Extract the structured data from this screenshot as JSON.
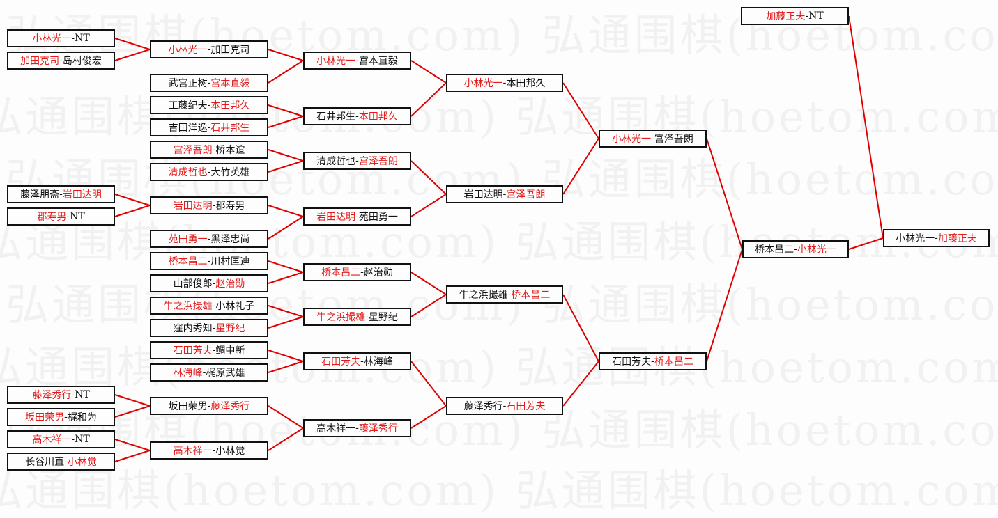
{
  "watermark": "弘通围棋(hoetom.com) 弘通围棋(hoetom.com) 弘通围棋(hoetom.com)",
  "colors": {
    "winner": "#e31b1b",
    "line": "#e00000",
    "text": "#111111"
  },
  "separator": "-",
  "rounds": {
    "round1": [
      {
        "left": "小林光一",
        "right": "NT",
        "winner": "left"
      },
      {
        "left": "加田克司",
        "right": "岛村俊宏",
        "winner": "left"
      },
      {
        "left": "藤泽朋斋",
        "right": "岩田达明",
        "winner": "right"
      },
      {
        "left": "郡寿男",
        "right": "NT",
        "winner": "left"
      },
      {
        "left": "藤泽秀行",
        "right": "NT",
        "winner": "left"
      },
      {
        "left": "坂田荣男",
        "right": "梶和为",
        "winner": "left"
      },
      {
        "left": "高木祥一",
        "right": "NT",
        "winner": "left"
      },
      {
        "left": "长谷川直",
        "right": "小林觉",
        "winner": "right"
      }
    ],
    "round2": [
      {
        "left": "小林光一",
        "right": "加田克司",
        "winner": "left"
      },
      {
        "left": "武宫正树",
        "right": "宫本直毅",
        "winner": "right"
      },
      {
        "left": "工藤纪夫",
        "right": "本田邦久",
        "winner": "right"
      },
      {
        "left": "吉田洋逸",
        "right": "石井邦生",
        "winner": "right"
      },
      {
        "left": "宫泽吾朗",
        "right": "桥本谊",
        "winner": "left"
      },
      {
        "left": "清成哲也",
        "right": "大竹英雄",
        "winner": "left"
      },
      {
        "left": "岩田达明",
        "right": "郡寿男",
        "winner": "left"
      },
      {
        "left": "苑田勇一",
        "right": "黑泽忠尚",
        "winner": "left"
      },
      {
        "left": "桥本昌二",
        "right": "川村匡迪",
        "winner": "left"
      },
      {
        "left": "山部俊郎",
        "right": "赵治勋",
        "winner": "right"
      },
      {
        "left": "牛之浜撮雄",
        "right": "小林礼子",
        "winner": "left"
      },
      {
        "left": "窪内秀知",
        "right": "星野纪",
        "winner": "right"
      },
      {
        "left": "石田芳夫",
        "right": "鲷中新",
        "winner": "left"
      },
      {
        "left": "林海峰",
        "right": "梶原武雄",
        "winner": "left"
      },
      {
        "left": "坂田荣男",
        "right": "藤泽秀行",
        "winner": "right"
      },
      {
        "left": "高木祥一",
        "right": "小林觉",
        "winner": "left"
      }
    ],
    "round3": [
      {
        "left": "小林光一",
        "right": "宫本直毅",
        "winner": "left"
      },
      {
        "left": "石井邦生",
        "right": "本田邦久",
        "winner": "right"
      },
      {
        "left": "清成哲也",
        "right": "宫泽吾朗",
        "winner": "right"
      },
      {
        "left": "岩田达明",
        "right": "苑田勇一",
        "winner": "left"
      },
      {
        "left": "桥本昌二",
        "right": "赵治勋",
        "winner": "left"
      },
      {
        "left": "牛之浜撮雄",
        "right": "星野纪",
        "winner": "left"
      },
      {
        "left": "石田芳夫",
        "right": "林海峰",
        "winner": "left"
      },
      {
        "left": "高木祥一",
        "right": "藤泽秀行",
        "winner": "right"
      }
    ],
    "round4": [
      {
        "left": "小林光一",
        "right": "本田邦久",
        "winner": "left"
      },
      {
        "left": "岩田达明",
        "right": "宫泽吾朗",
        "winner": "right"
      },
      {
        "left": "牛之浜撮雄",
        "right": "桥本昌二",
        "winner": "right"
      },
      {
        "left": "藤泽秀行",
        "right": "石田芳夫",
        "winner": "right"
      }
    ],
    "round5": [
      {
        "left": "小林光一",
        "right": "宫泽吾朗",
        "winner": "left"
      },
      {
        "left": "石田芳夫",
        "right": "桥本昌二",
        "winner": "right"
      }
    ],
    "round6": [
      {
        "left": "桥本昌二",
        "right": "小林光一",
        "winner": "right"
      }
    ],
    "seed": [
      {
        "left": "加藤正夫",
        "right": "NT",
        "winner": "left"
      }
    ],
    "final": [
      {
        "left": "小林光一",
        "right": "加藤正夫",
        "winner": "right"
      }
    ]
  }
}
